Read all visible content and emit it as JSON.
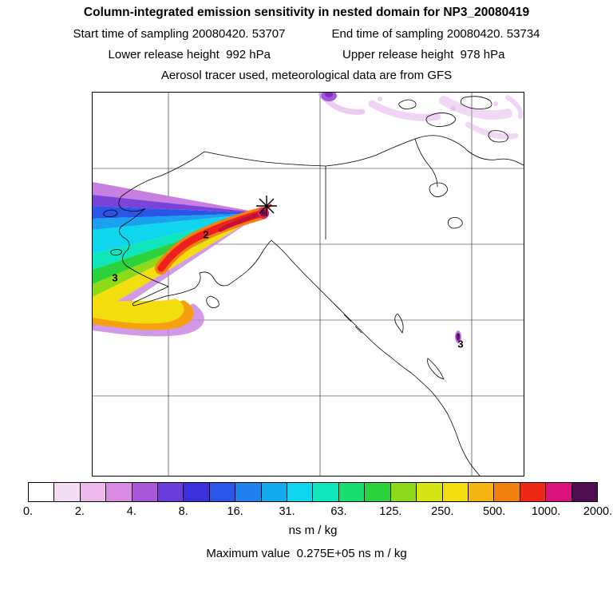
{
  "header": {
    "title": "Column-integrated emission sensitivity in nested domain for NP3_20080419",
    "start_time": "Start time of sampling 20080420. 53707",
    "end_time": "End time of sampling 20080420. 53734",
    "lower_release": "Lower release height  992 hPa",
    "upper_release": "Upper release height  978 hPa",
    "tracer_line": "Aerosol tracer used, meteorological data are from GFS"
  },
  "map": {
    "contour_labels": [
      {
        "text": "2"
      },
      {
        "text": "3"
      },
      {
        "text": "3"
      }
    ],
    "source_marker": "star-asterisk"
  },
  "colorbar": {
    "cells": [
      "#ffffff",
      "#f4def4",
      "#eebaee",
      "#d98ae2",
      "#a957d9",
      "#6a3cd9",
      "#3c2fd9",
      "#2b55e6",
      "#1f80ee",
      "#14aaee",
      "#0fd6ee",
      "#0fe6bc",
      "#19dd6e",
      "#2bd23b",
      "#8cda19",
      "#d5e614",
      "#f2de0f",
      "#f5b40f",
      "#f2800f",
      "#ee2814",
      "#d9127d",
      "#4f0e52"
    ],
    "tick_labels": [
      "0.",
      "2.",
      "4.",
      "8.",
      "16.",
      "31.",
      "63.",
      "125.",
      "250.",
      "500.",
      "1000.",
      "2000."
    ],
    "units": "ns m / kg"
  },
  "footer": {
    "max_value_line": "Maximum value  0.275E+05 ns m / kg"
  },
  "chart_data": {
    "type": "heatmap",
    "title": "Column-integrated emission sensitivity in nested domain for NP3_20080419",
    "subtitle_lines": [
      "Start time of sampling 20080420. 53707    End time of sampling 20080420. 53734",
      "Lower release height  992 hPa    Upper release height  978 hPa",
      "Aerosol tracer used, meteorological data are from GFS"
    ],
    "units": "ns m / kg",
    "colorbar_levels": [
      0,
      2,
      4,
      8,
      16,
      31,
      63,
      125,
      250,
      500,
      1000,
      2000
    ],
    "max_value": "0.275E+05 ns m / kg",
    "annotations": [
      "2",
      "3",
      "3"
    ],
    "legend_position": "bottom",
    "grid": true,
    "description": "Emission sensitivity plume fanning west from a star-marked source over southern Alaska; highest values (red to dark purple) at the source, decreasing outward through orange, yellow, green, cyan, blue and violet bands; faint violet filaments along the top of the map and a small high-value spot on the British Columbia coast."
  }
}
